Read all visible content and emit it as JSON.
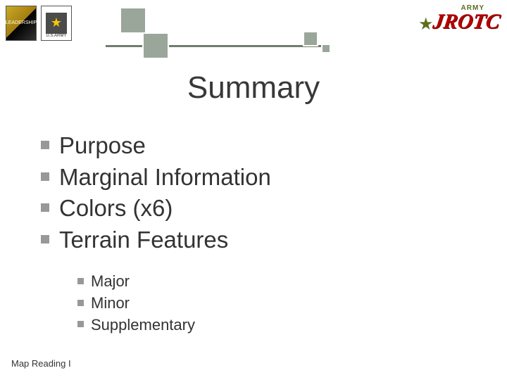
{
  "colors": {
    "text": "#333333",
    "background": "#ffffff",
    "bullet_square": "#989898",
    "decor_square": "#9ba69a",
    "decor_rule": "#6f7d6d",
    "jrotc_red": "#b30000",
    "army_olive": "#5c6e1d"
  },
  "typography": {
    "title_fontsize": 44,
    "level1_fontsize": 33,
    "level2_fontsize": 22,
    "footer_fontsize": 13,
    "font_family": "Verdana"
  },
  "header": {
    "badge_left_label": "LEADERSHIP",
    "badge_army_label": "U.S.ARMY",
    "logo_top": "ARMY",
    "logo_main": "JROTC"
  },
  "title": "Summary",
  "bullets_level1": [
    "Purpose",
    "Marginal Information",
    "Colors (x6)",
    "Terrain Features"
  ],
  "bullets_level2": [
    "Major",
    "Minor",
    "Supplementary"
  ],
  "footer": "Map Reading I"
}
